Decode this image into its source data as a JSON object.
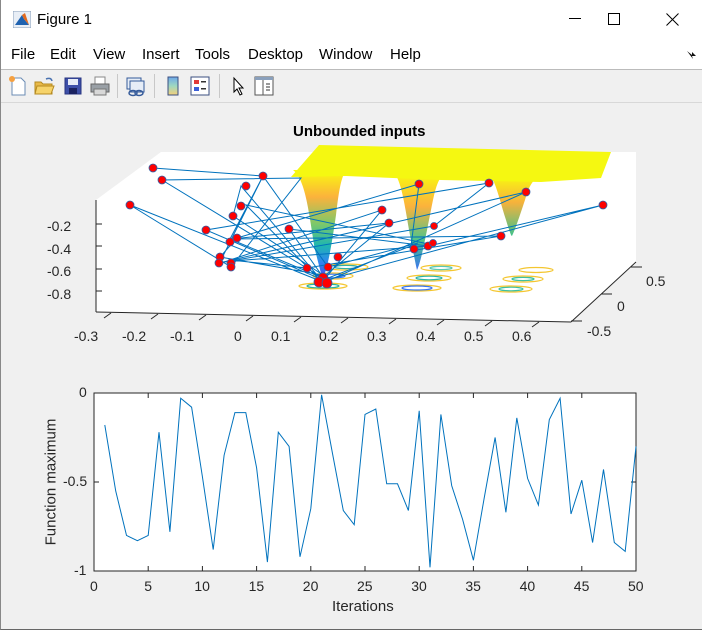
{
  "window": {
    "title": "Figure 1",
    "controls": {
      "minimize": "minimize-icon",
      "maximize": "maximize-icon",
      "close": "close-icon"
    }
  },
  "menubar": {
    "items": [
      {
        "label": "File"
      },
      {
        "label": "Edit"
      },
      {
        "label": "View"
      },
      {
        "label": "Insert"
      },
      {
        "label": "Tools"
      },
      {
        "label": "Desktop"
      },
      {
        "label": "Window"
      },
      {
        "label": "Help"
      }
    ],
    "dock_icon": "dock-arrow-icon"
  },
  "toolbar": {
    "buttons": [
      {
        "icon": "new-figure-icon"
      },
      {
        "icon": "open-file-icon"
      },
      {
        "icon": "save-icon"
      },
      {
        "icon": "print-icon"
      },
      {
        "icon": "link-plot-icon"
      },
      {
        "icon": "insert-colorbar-icon"
      },
      {
        "icon": "insert-legend-icon"
      },
      {
        "icon": "edit-plot-pointer-icon"
      },
      {
        "icon": "property-inspector-icon"
      }
    ]
  },
  "colors": {
    "line": "#0072bd",
    "marker": "#ff0000",
    "surface_top": "#f9fb0e",
    "surface_mid": "#36b7a0",
    "surface_low": "#3e26a8",
    "axes_bg": "#ffffff",
    "figure_bg": "#f0f0f0"
  },
  "chart_data": [
    {
      "type": "scatter3d-surface",
      "title": "Unbounded inputs",
      "xlabel": "",
      "ylabel": "",
      "zlabel": "",
      "x_ticks": [
        "-0.3",
        "-0.2",
        "-0.1",
        "0",
        "0.1",
        "0.2",
        "0.3",
        "0.4",
        "0.5",
        "0.6"
      ],
      "y_ticks": [
        "-0.5",
        "0",
        "0.5"
      ],
      "z_ticks": [
        "-0.2",
        "-0.4",
        "-0.6",
        "-0.8"
      ],
      "xlim": [
        -0.3,
        0.65
      ],
      "ylim": [
        -0.6,
        0.6
      ],
      "zlim": [
        -0.85,
        0
      ],
      "description": "Surface with three funnel-shaped minima (near x≈0.2, x≈0.4, x≈0.6) over a flat yellow plateau at z≈0; red sample points connected by blue lines in evaluation order; contour rings projected on the floor.",
      "surface_minima": [
        {
          "x": 0.2,
          "z": -0.75
        },
        {
          "x": 0.4,
          "z": -0.6
        },
        {
          "x": 0.6,
          "z": -0.3
        }
      ]
    },
    {
      "type": "line",
      "title": "",
      "xlabel": "Iterations",
      "ylabel": "Function maximum",
      "xlim": [
        0,
        50
      ],
      "ylim": [
        -1,
        0
      ],
      "x_ticks": [
        "0",
        "5",
        "10",
        "15",
        "20",
        "25",
        "30",
        "35",
        "40",
        "45",
        "50"
      ],
      "y_ticks": [
        "-1",
        "-0.5",
        "0"
      ],
      "grid": false,
      "x": [
        1,
        2,
        3,
        4,
        5,
        6,
        7,
        8,
        9,
        10,
        11,
        12,
        13,
        14,
        15,
        16,
        17,
        18,
        19,
        20,
        21,
        22,
        23,
        24,
        25,
        26,
        27,
        28,
        29,
        30,
        31,
        32,
        33,
        34,
        35,
        36,
        37,
        38,
        39,
        40,
        41,
        42,
        43,
        44,
        45,
        46,
        47,
        48,
        49,
        50
      ],
      "series": [
        {
          "name": "Function maximum",
          "values": [
            -0.18,
            -0.55,
            -0.8,
            -0.83,
            -0.8,
            -0.22,
            -0.78,
            -0.03,
            -0.08,
            -0.47,
            -0.88,
            -0.35,
            -0.11,
            -0.11,
            -0.42,
            -0.95,
            -0.22,
            -0.3,
            -0.92,
            -0.65,
            -0.01,
            -0.34,
            -0.66,
            -0.74,
            -0.12,
            -0.09,
            -0.51,
            -0.51,
            -0.66,
            -0.1,
            -0.98,
            -0.12,
            -0.52,
            -0.71,
            -0.94,
            -0.59,
            -0.25,
            -0.67,
            -0.14,
            -0.48,
            -0.63,
            -0.15,
            -0.03,
            -0.68,
            -0.49,
            -0.84,
            -0.43,
            -0.84,
            -0.89,
            -0.3
          ]
        }
      ]
    }
  ]
}
